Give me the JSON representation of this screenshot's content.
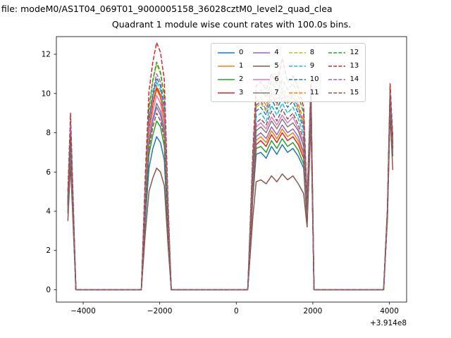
{
  "header": {
    "top_text": "n file: modeM0/AS1T04_069T01_9000005158_36028cztM0_level2_quad_clea"
  },
  "chart_data": {
    "type": "line",
    "title": "Quadrant 1 module wise count rates with 100.0s bins.",
    "xlabel": "",
    "ylabel": "",
    "x_offset_label": "+3.914e8",
    "x_ticks": [
      -4000,
      -2000,
      0,
      2000,
      4000
    ],
    "y_ticks": [
      0,
      2,
      4,
      6,
      8,
      10,
      12
    ],
    "xlim": [
      -4700,
      4450
    ],
    "ylim": [
      -0.63,
      12.9
    ],
    "grid": false,
    "legend": {
      "position": "upper center",
      "columns": 4
    },
    "x": [
      -4400,
      -4330,
      -4260,
      -4190,
      -4050,
      -3500,
      -2600,
      -2480,
      -2380,
      -2280,
      -2180,
      -2080,
      -1980,
      -1880,
      -1780,
      -1700,
      -1000,
      -200,
      300,
      430,
      520,
      640,
      780,
      920,
      1060,
      1200,
      1340,
      1480,
      1620,
      1760,
      1850,
      1950,
      2030,
      2120,
      3000,
      3850,
      3950,
      4020,
      4090
    ],
    "series": [
      {
        "name": "0",
        "color": "#1f77b4",
        "dash": false,
        "values": [
          3.9,
          7.0,
          3.5,
          0,
          0,
          0,
          0,
          0,
          3.5,
          6.2,
          7.2,
          7.8,
          7.5,
          6.6,
          2.7,
          0,
          0,
          0,
          0,
          4.6,
          6.9,
          7.0,
          6.7,
          7.3,
          6.9,
          7.4,
          7.0,
          7.2,
          6.8,
          6.2,
          3.4,
          9.2,
          0,
          0,
          0,
          0,
          3.9,
          9.8,
          7.3
        ]
      },
      {
        "name": "1",
        "color": "#ff7f0e",
        "dash": false,
        "values": [
          4.2,
          7.6,
          3.8,
          0,
          0,
          0,
          0,
          0,
          4.6,
          8.2,
          9.4,
          10.2,
          9.8,
          8.7,
          3.6,
          0,
          0,
          0,
          0,
          5.1,
          7.6,
          7.8,
          7.5,
          8.1,
          7.7,
          8.2,
          7.8,
          8.0,
          7.6,
          6.9,
          3.6,
          9.6,
          0,
          0,
          0,
          0,
          4.0,
          10.0,
          7.4
        ]
      },
      {
        "name": "2",
        "color": "#2ca02c",
        "dash": false,
        "values": [
          4.0,
          7.2,
          3.6,
          0,
          0,
          0,
          0,
          0,
          3.9,
          6.9,
          7.9,
          8.6,
          8.3,
          7.3,
          3.0,
          0,
          0,
          0,
          0,
          4.7,
          7.2,
          7.3,
          7.0,
          7.6,
          7.2,
          7.7,
          7.3,
          7.5,
          7.1,
          6.4,
          3.5,
          9.0,
          0,
          0,
          0,
          0,
          3.8,
          9.4,
          6.8
        ]
      },
      {
        "name": "3",
        "color": "#d62728",
        "dash": false,
        "values": [
          4.3,
          7.8,
          3.9,
          0,
          0,
          0,
          0,
          0,
          4.6,
          8.2,
          9.5,
          10.3,
          9.9,
          8.8,
          3.6,
          0,
          0,
          0,
          0,
          4.9,
          7.4,
          7.6,
          7.3,
          7.9,
          7.5,
          8.0,
          7.6,
          7.8,
          7.4,
          6.7,
          3.6,
          9.4,
          0,
          0,
          0,
          0,
          4.0,
          10.1,
          7.2
        ]
      },
      {
        "name": "4",
        "color": "#9467bd",
        "dash": false,
        "values": [
          4.1,
          7.4,
          3.7,
          0,
          0,
          0,
          0,
          0,
          4.2,
          7.4,
          8.6,
          9.3,
          8.9,
          7.9,
          3.3,
          0,
          0,
          0,
          0,
          5.2,
          7.8,
          8.0,
          7.7,
          8.3,
          7.9,
          8.4,
          8.0,
          8.2,
          7.8,
          7.0,
          3.8,
          9.2,
          0,
          0,
          0,
          0,
          3.8,
          9.6,
          7.0
        ]
      },
      {
        "name": "5",
        "color": "#8c564b",
        "dash": false,
        "values": [
          3.5,
          6.4,
          3.2,
          0,
          0,
          0,
          0,
          0,
          2.8,
          5.0,
          5.7,
          6.2,
          6.0,
          5.3,
          2.2,
          0,
          0,
          0,
          0,
          3.6,
          5.5,
          5.6,
          5.4,
          5.8,
          5.5,
          5.9,
          5.6,
          5.8,
          5.4,
          4.9,
          3.2,
          8.6,
          0,
          0,
          0,
          0,
          3.6,
          9.0,
          6.1
        ]
      },
      {
        "name": "6",
        "color": "#e377c2",
        "dash": false,
        "values": [
          4.2,
          7.7,
          3.9,
          0,
          0,
          0,
          0,
          0,
          4.5,
          7.9,
          9.1,
          9.9,
          9.5,
          8.4,
          3.5,
          0,
          0,
          0,
          0,
          5.5,
          8.3,
          8.5,
          8.2,
          8.8,
          8.4,
          8.9,
          8.5,
          8.8,
          8.2,
          7.5,
          4.0,
          9.8,
          0,
          0,
          0,
          0,
          4.0,
          10.0,
          7.3
        ]
      },
      {
        "name": "7",
        "color": "#7f7f7f",
        "dash": false,
        "values": [
          4.1,
          7.5,
          3.8,
          0,
          0,
          0,
          0,
          0,
          4.3,
          7.6,
          8.7,
          9.5,
          9.1,
          8.1,
          3.3,
          0,
          0,
          0,
          0,
          5.4,
          8.1,
          8.3,
          8.0,
          8.6,
          8.2,
          8.7,
          8.3,
          8.5,
          8.1,
          7.3,
          3.9,
          9.5,
          0,
          0,
          0,
          0,
          3.9,
          9.7,
          7.1
        ]
      },
      {
        "name": "8",
        "color": "#bcbd22",
        "dash": true,
        "values": [
          4.5,
          8.2,
          4.1,
          0,
          0,
          0,
          0,
          0,
          5.2,
          9.2,
          10.6,
          11.5,
          11.0,
          9.8,
          4.0,
          0,
          0,
          0,
          0,
          6.2,
          9.3,
          9.5,
          9.1,
          9.9,
          9.4,
          10.0,
          9.5,
          9.8,
          9.2,
          8.4,
          4.3,
          10.2,
          0,
          0,
          0,
          0,
          4.1,
          10.2,
          7.6
        ]
      },
      {
        "name": "9",
        "color": "#17becf",
        "dash": true,
        "values": [
          4.4,
          8.0,
          4.0,
          0,
          0,
          0,
          0,
          0,
          4.8,
          8.5,
          9.8,
          10.6,
          10.2,
          9.0,
          3.7,
          0,
          0,
          0,
          0,
          5.9,
          8.8,
          9.0,
          8.6,
          9.4,
          8.9,
          9.5,
          9.0,
          9.3,
          8.7,
          7.9,
          4.2,
          10.0,
          0,
          0,
          0,
          0,
          4.0,
          10.0,
          7.5
        ]
      },
      {
        "name": "10",
        "color": "#1f77b4",
        "dash": true,
        "values": [
          4.5,
          8.1,
          4.1,
          0,
          0,
          0,
          0,
          0,
          4.9,
          8.6,
          9.9,
          10.8,
          10.4,
          9.2,
          3.8,
          0,
          0,
          0,
          0,
          6.0,
          9.1,
          9.3,
          8.9,
          9.7,
          9.2,
          9.8,
          9.3,
          9.6,
          9.0,
          8.2,
          4.2,
          10.1,
          0,
          0,
          0,
          0,
          4.0,
          10.1,
          7.4
        ]
      },
      {
        "name": "11",
        "color": "#ff7f0e",
        "dash": true,
        "values": [
          4.6,
          8.3,
          4.2,
          0,
          0,
          0,
          0,
          0,
          4.7,
          8.3,
          9.6,
          10.4,
          10.0,
          8.8,
          3.6,
          0,
          0,
          0,
          0,
          6.4,
          9.6,
          9.8,
          9.4,
          10.2,
          9.7,
          10.3,
          9.8,
          10.1,
          9.5,
          8.6,
          4.4,
          10.3,
          0,
          0,
          0,
          0,
          4.1,
          10.2,
          7.6
        ]
      },
      {
        "name": "12",
        "color": "#2ca02c",
        "dash": true,
        "values": [
          4.7,
          8.5,
          4.3,
          0,
          0,
          0,
          0,
          0,
          5.2,
          9.3,
          10.7,
          11.6,
          11.1,
          9.9,
          4.1,
          0,
          0,
          0,
          0,
          6.6,
          10.0,
          10.2,
          9.8,
          10.6,
          10.1,
          10.7,
          10.2,
          10.5,
          9.9,
          9.0,
          4.5,
          10.4,
          0,
          0,
          0,
          0,
          4.1,
          10.3,
          7.7
        ]
      },
      {
        "name": "13",
        "color": "#d62728",
        "dash": true,
        "values": [
          5.0,
          9.0,
          4.5,
          0,
          0,
          0,
          0,
          0,
          5.7,
          10.1,
          11.6,
          12.6,
          12.1,
          10.7,
          4.4,
          0,
          0,
          0,
          0,
          6.9,
          10.4,
          10.6,
          10.2,
          11.0,
          10.5,
          11.8,
          10.6,
          10.9,
          10.3,
          9.3,
          4.6,
          10.5,
          0,
          0,
          0,
          0,
          4.2,
          10.5,
          7.8
        ]
      },
      {
        "name": "14",
        "color": "#9467bd",
        "dash": true,
        "values": [
          4.6,
          8.4,
          4.2,
          0,
          0,
          0,
          0,
          0,
          5.0,
          8.8,
          10.1,
          11.0,
          10.6,
          9.4,
          3.9,
          0,
          0,
          0,
          0,
          6.2,
          9.4,
          9.6,
          9.2,
          10.0,
          9.5,
          10.1,
          9.6,
          9.9,
          9.3,
          8.4,
          4.3,
          10.2,
          0,
          0,
          0,
          0,
          4.0,
          10.1,
          7.5
        ]
      },
      {
        "name": "15",
        "color": "#8c564b",
        "dash": true,
        "values": [
          4.3,
          7.9,
          4.0,
          0,
          0,
          0,
          0,
          0,
          4.1,
          7.2,
          8.3,
          9.0,
          8.6,
          7.7,
          3.2,
          0,
          0,
          0,
          0,
          5.7,
          8.5,
          8.7,
          8.4,
          9.1,
          8.6,
          9.2,
          8.7,
          9.0,
          8.4,
          7.7,
          4.1,
          9.9,
          0,
          0,
          0,
          0,
          4.0,
          9.9,
          7.2
        ]
      }
    ]
  }
}
